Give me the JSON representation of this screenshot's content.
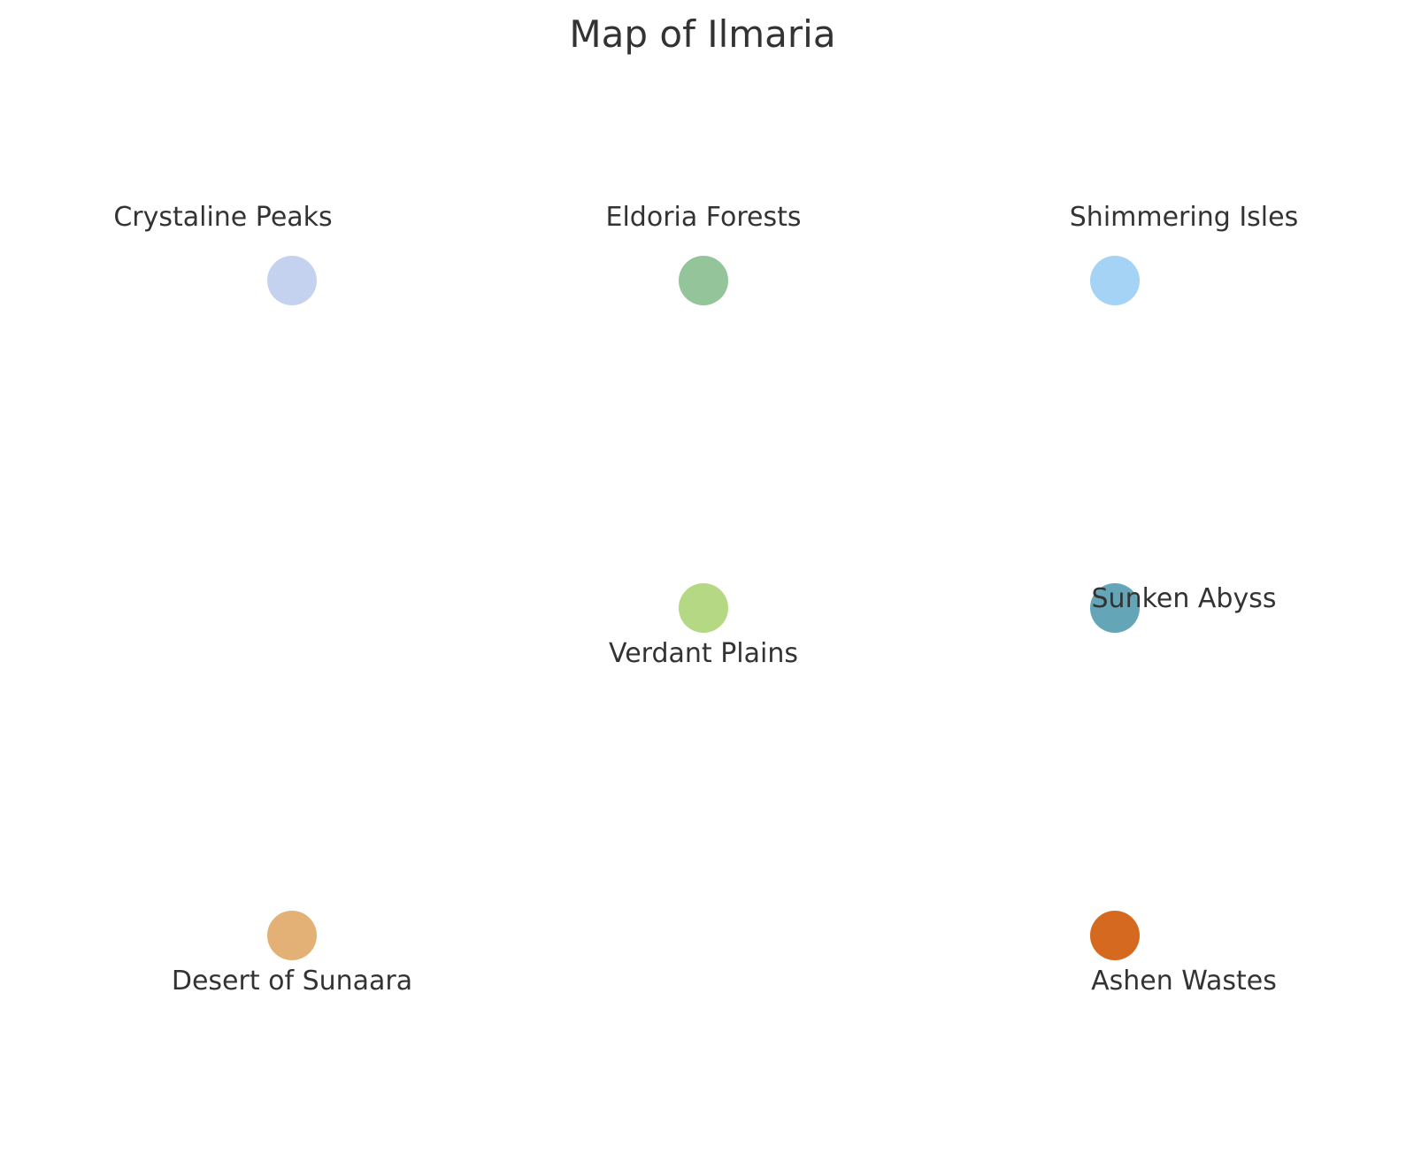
{
  "map": {
    "title": "Map of Ilmaria",
    "regions": [
      {
        "name": "Crystaline Peaks",
        "color": "#c4d2f0",
        "row": "top",
        "column": "left",
        "label_position": "above"
      },
      {
        "name": "Eldoria Forests",
        "color": "#93c49a",
        "row": "top",
        "column": "center",
        "label_position": "above"
      },
      {
        "name": "Shimmering Isles",
        "color": "#a4d3f5",
        "row": "top",
        "column": "right",
        "label_position": "above"
      },
      {
        "name": "Verdant Plains",
        "color": "#b4d883",
        "row": "middle",
        "column": "center",
        "label_position": "below"
      },
      {
        "name": "Sunken Abyss",
        "color": "#64a6b7",
        "row": "middle",
        "column": "right",
        "label_position": "over"
      },
      {
        "name": "Desert of Sunaara",
        "color": "#e3b176",
        "row": "bottom",
        "column": "left",
        "label_position": "below"
      },
      {
        "name": "Ashen Wastes",
        "color": "#d4691f",
        "row": "bottom",
        "column": "right",
        "label_position": "below"
      }
    ]
  }
}
